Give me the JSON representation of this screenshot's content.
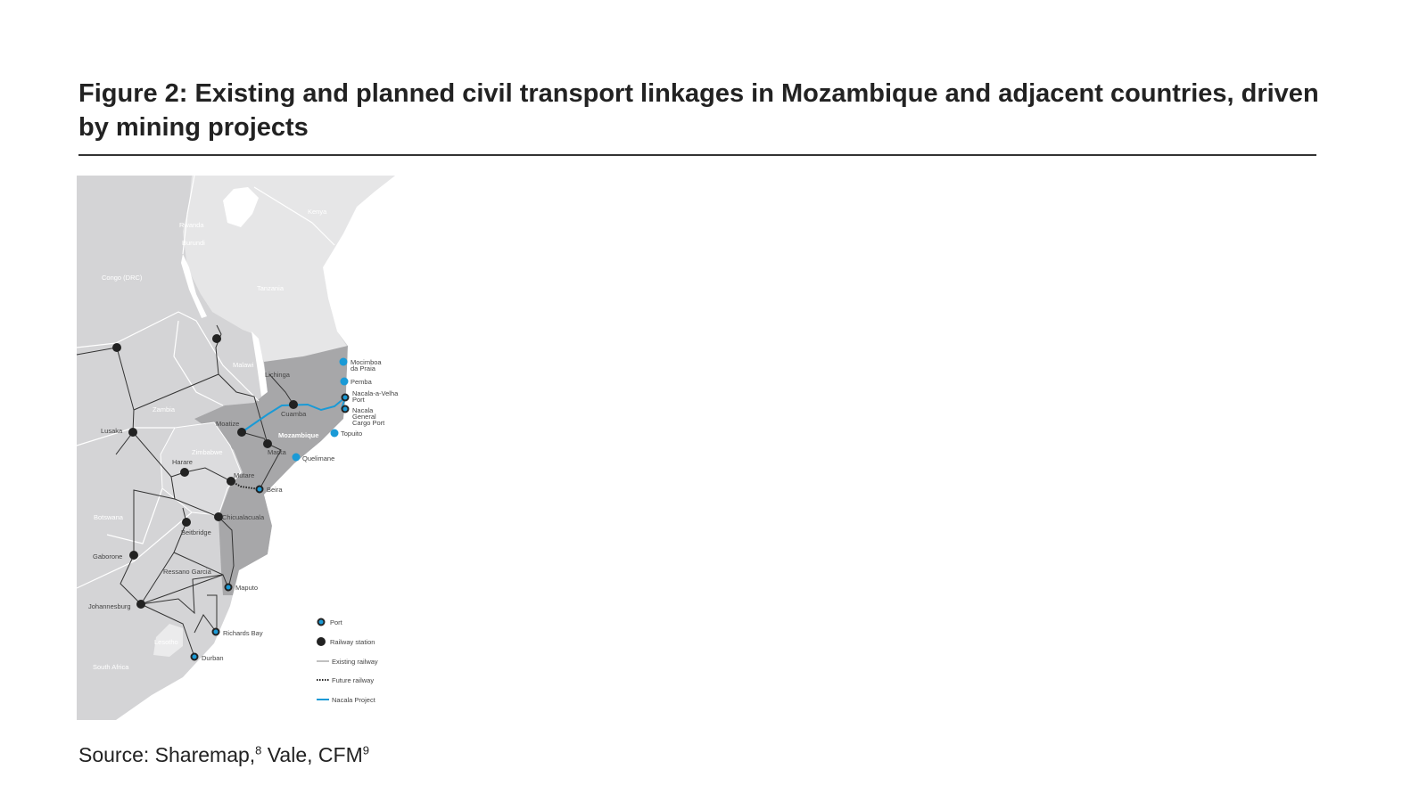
{
  "title": "Figure 2: Existing and planned civil transport linkages in Mozambique and adjacent countries, driven by mining projects",
  "source": {
    "text": "Source: Sharemap,",
    "ref1": "8",
    "text2": " Vale, CFM",
    "ref2": "9"
  },
  "map": {
    "countries": {
      "kenya": "Kenya",
      "rwanda": "Rwanda",
      "burundi": "Burundi",
      "congo": "Congo (DRC)",
      "tanzania": "Tanzania",
      "malawi": "Malawi",
      "zambia": "Zambia",
      "zimbabwe": "Zimbabwe",
      "mozambique": "Mozambique",
      "botswana": "Botswana",
      "lesotho": "Lesotho",
      "south_africa": "South Africa"
    },
    "ports": [
      "Mocimboa da Praia",
      "Pemba",
      "Nacala-a-Velha Port",
      "Nacala General Cargo Port",
      "Topuito",
      "Quelimane",
      "Beira",
      "Maputo",
      "Richards Bay",
      "Durban"
    ],
    "stations": [
      "Lichinga",
      "Cuamba",
      "Moatize",
      "Marka",
      "Lusaka",
      "Harare",
      "Mutare",
      "Chicualacuala",
      "Beitbridge",
      "Gaborone",
      "Ressano Garcia",
      "Johannesburg"
    ],
    "legend": {
      "port": "Port",
      "station": "Railway station",
      "existing": "Existing railway",
      "future": "Future railway",
      "nacala": "Nacala Project"
    },
    "colors": {
      "port": "#1a9ad6",
      "nacala": "#1a9ad6",
      "mozambique": "#a7a7a9",
      "land": "#d4d4d6"
    }
  }
}
